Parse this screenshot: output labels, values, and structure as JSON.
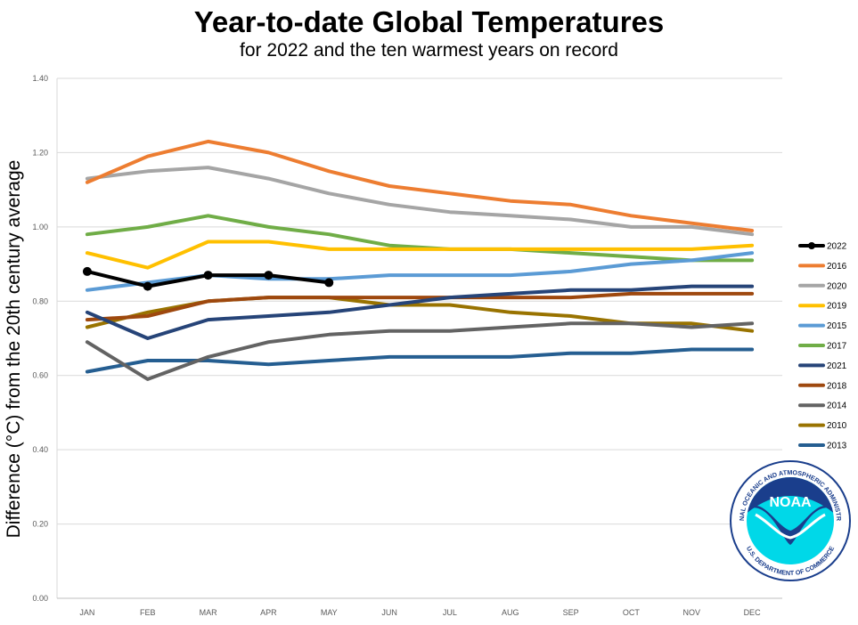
{
  "chart_data": {
    "type": "line",
    "title": "Year-to-date Global Temperatures",
    "subtitle": "for 2022 and the ten warmest years on record",
    "ylabel": "Difference (°C) from the 20th century average",
    "xlabel": "",
    "categories": [
      "JAN",
      "FEB",
      "MAR",
      "APR",
      "MAY",
      "JUN",
      "JUL",
      "AUG",
      "SEP",
      "OCT",
      "NOV",
      "DEC"
    ],
    "ylim": [
      0,
      1.4
    ],
    "yticks": [
      "0.00",
      "0.20",
      "0.40",
      "0.60",
      "0.80",
      "1.00",
      "1.20",
      "1.40"
    ],
    "grid": true,
    "legend_position": "right",
    "series": [
      {
        "name": "2022",
        "color": "#000000",
        "markers": true,
        "values": [
          0.88,
          0.84,
          0.87,
          0.87,
          0.85,
          null,
          null,
          null,
          null,
          null,
          null,
          null
        ]
      },
      {
        "name": "2016",
        "color": "#ED7D31",
        "values": [
          1.12,
          1.19,
          1.23,
          1.2,
          1.15,
          1.11,
          1.09,
          1.07,
          1.06,
          1.03,
          1.01,
          0.99
        ]
      },
      {
        "name": "2020",
        "color": "#A5A5A5",
        "values": [
          1.13,
          1.15,
          1.16,
          1.13,
          1.09,
          1.06,
          1.04,
          1.03,
          1.02,
          1.0,
          1.0,
          0.98
        ]
      },
      {
        "name": "2019",
        "color": "#FFC000",
        "values": [
          0.93,
          0.89,
          0.96,
          0.96,
          0.94,
          0.94,
          0.94,
          0.94,
          0.94,
          0.94,
          0.94,
          0.95
        ]
      },
      {
        "name": "2015",
        "color": "#5B9BD5",
        "values": [
          0.83,
          0.85,
          0.87,
          0.86,
          0.86,
          0.87,
          0.87,
          0.87,
          0.88,
          0.9,
          0.91,
          0.93
        ]
      },
      {
        "name": "2017",
        "color": "#70AD47",
        "values": [
          0.98,
          1.0,
          1.03,
          1.0,
          0.98,
          0.95,
          0.94,
          0.94,
          0.93,
          0.92,
          0.91,
          0.91
        ]
      },
      {
        "name": "2021",
        "color": "#264478",
        "values": [
          0.77,
          0.7,
          0.75,
          0.76,
          0.77,
          0.79,
          0.81,
          0.82,
          0.83,
          0.83,
          0.84,
          0.84
        ]
      },
      {
        "name": "2018",
        "color": "#9E480E",
        "values": [
          0.75,
          0.76,
          0.8,
          0.81,
          0.81,
          0.81,
          0.81,
          0.81,
          0.81,
          0.82,
          0.82,
          0.82
        ]
      },
      {
        "name": "2014",
        "color": "#636363",
        "values": [
          0.69,
          0.59,
          0.65,
          0.69,
          0.71,
          0.72,
          0.72,
          0.73,
          0.74,
          0.74,
          0.73,
          0.74
        ]
      },
      {
        "name": "2010",
        "color": "#997300",
        "values": [
          0.73,
          0.77,
          0.8,
          0.81,
          0.81,
          0.79,
          0.79,
          0.77,
          0.76,
          0.74,
          0.74,
          0.72
        ]
      },
      {
        "name": "2013",
        "color": "#255E91",
        "values": [
          0.61,
          0.64,
          0.64,
          0.63,
          0.64,
          0.65,
          0.65,
          0.65,
          0.66,
          0.66,
          0.67,
          0.67
        ]
      }
    ]
  },
  "logo": {
    "center_text": "NOAA",
    "ring_text": "NATIONAL OCEANIC AND ATMOSPHERIC ADMINISTRATION",
    "bottom_text": "U.S. DEPARTMENT OF COMMERCE",
    "colors": {
      "navy": "#1A3E8C",
      "cyan": "#00D8E8"
    }
  }
}
